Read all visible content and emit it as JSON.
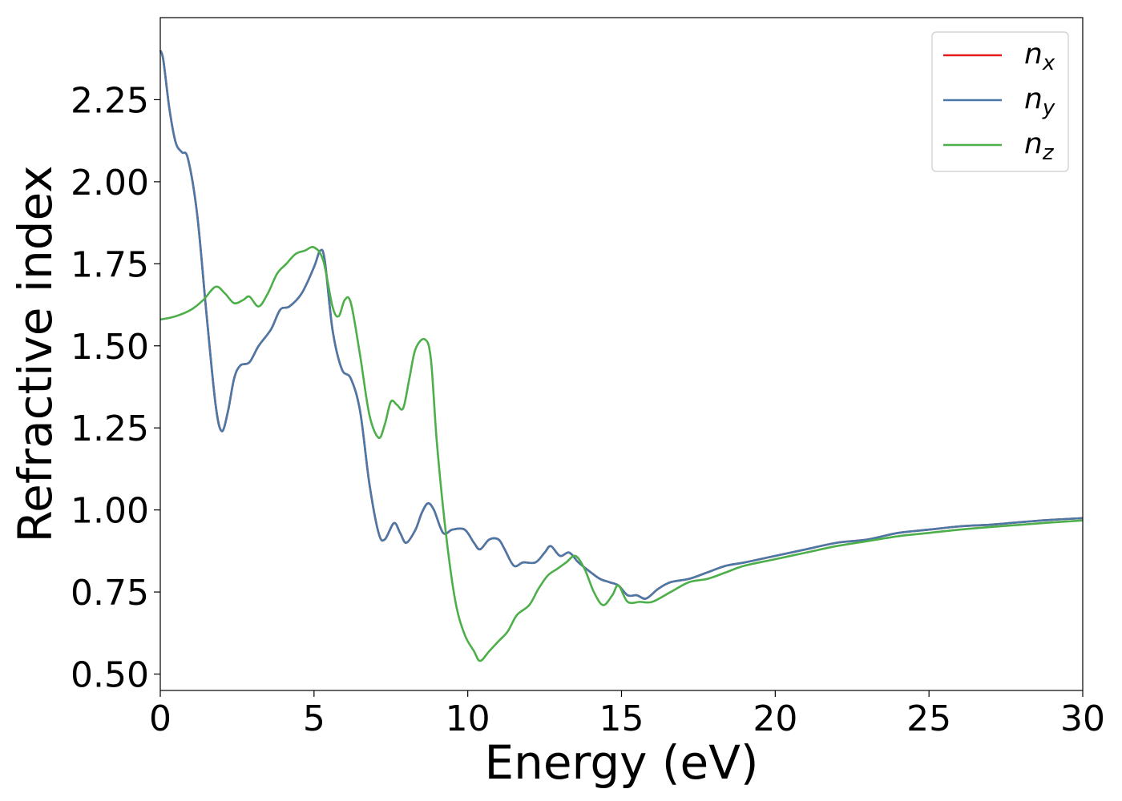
{
  "chart_data": {
    "type": "line",
    "xlabel": "Energy (eV)",
    "ylabel": "Refractive index",
    "xlim": [
      0,
      30
    ],
    "ylim": [
      0.45,
      2.5
    ],
    "xticks": [
      "0",
      "5",
      "10",
      "15",
      "20",
      "25",
      "30"
    ],
    "xtick_values": [
      0,
      5,
      10,
      15,
      20,
      25,
      30
    ],
    "yticks": [
      "0.50",
      "0.75",
      "1.00",
      "1.25",
      "1.50",
      "1.75",
      "2.00",
      "2.25"
    ],
    "ytick_values": [
      0.5,
      0.75,
      1.0,
      1.25,
      1.5,
      1.75,
      2.0,
      2.25
    ],
    "grid": false,
    "legend_position": "top-right",
    "series": [
      {
        "name": "n_x",
        "legend_base": "n",
        "legend_sub": "x",
        "color": "#e41a1c",
        "points": [
          [
            0,
            2.4
          ],
          [
            0.1,
            2.37
          ],
          [
            0.3,
            2.22
          ],
          [
            0.5,
            2.12
          ],
          [
            0.7,
            2.09
          ],
          [
            0.9,
            2.07
          ],
          [
            1.2,
            1.9
          ],
          [
            1.5,
            1.6
          ],
          [
            1.8,
            1.32
          ],
          [
            2.0,
            1.24
          ],
          [
            2.2,
            1.3
          ],
          [
            2.4,
            1.4
          ],
          [
            2.6,
            1.44
          ],
          [
            2.9,
            1.45
          ],
          [
            3.2,
            1.5
          ],
          [
            3.6,
            1.55
          ],
          [
            3.9,
            1.61
          ],
          [
            4.2,
            1.62
          ],
          [
            4.6,
            1.66
          ],
          [
            5.0,
            1.74
          ],
          [
            5.2,
            1.79
          ],
          [
            5.35,
            1.76
          ],
          [
            5.6,
            1.55
          ],
          [
            5.9,
            1.43
          ],
          [
            6.2,
            1.4
          ],
          [
            6.5,
            1.3
          ],
          [
            6.8,
            1.08
          ],
          [
            7.1,
            0.93
          ],
          [
            7.3,
            0.91
          ],
          [
            7.6,
            0.96
          ],
          [
            7.8,
            0.93
          ],
          [
            8.0,
            0.9
          ],
          [
            8.3,
            0.94
          ],
          [
            8.5,
            0.99
          ],
          [
            8.7,
            1.02
          ],
          [
            8.9,
            1.0
          ],
          [
            9.2,
            0.93
          ],
          [
            9.5,
            0.94
          ],
          [
            9.9,
            0.94
          ],
          [
            10.2,
            0.9
          ],
          [
            10.4,
            0.88
          ],
          [
            10.7,
            0.91
          ],
          [
            11.0,
            0.91
          ],
          [
            11.2,
            0.88
          ],
          [
            11.5,
            0.83
          ],
          [
            11.8,
            0.84
          ],
          [
            12.2,
            0.84
          ],
          [
            12.5,
            0.87
          ],
          [
            12.7,
            0.89
          ],
          [
            13.0,
            0.86
          ],
          [
            13.3,
            0.87
          ],
          [
            13.6,
            0.84
          ],
          [
            14.0,
            0.81
          ],
          [
            14.3,
            0.79
          ],
          [
            14.6,
            0.78
          ],
          [
            14.9,
            0.77
          ],
          [
            15.2,
            0.74
          ],
          [
            15.5,
            0.74
          ],
          [
            15.8,
            0.73
          ],
          [
            16.2,
            0.76
          ],
          [
            16.6,
            0.78
          ],
          [
            17.2,
            0.79
          ],
          [
            17.8,
            0.81
          ],
          [
            18.4,
            0.83
          ],
          [
            19.0,
            0.84
          ],
          [
            20.0,
            0.86
          ],
          [
            21.0,
            0.88
          ],
          [
            22.0,
            0.9
          ],
          [
            23.0,
            0.91
          ],
          [
            24.0,
            0.93
          ],
          [
            25.0,
            0.94
          ],
          [
            26.0,
            0.95
          ],
          [
            27.0,
            0.955
          ],
          [
            28.0,
            0.963
          ],
          [
            29.0,
            0.97
          ],
          [
            30.0,
            0.975
          ]
        ]
      },
      {
        "name": "n_y",
        "legend_base": "n",
        "legend_sub": "y",
        "color": "#4a79a8",
        "points": [
          [
            0,
            2.4
          ],
          [
            0.1,
            2.37
          ],
          [
            0.3,
            2.22
          ],
          [
            0.5,
            2.12
          ],
          [
            0.7,
            2.09
          ],
          [
            0.9,
            2.07
          ],
          [
            1.2,
            1.9
          ],
          [
            1.5,
            1.6
          ],
          [
            1.8,
            1.32
          ],
          [
            2.0,
            1.24
          ],
          [
            2.2,
            1.3
          ],
          [
            2.4,
            1.4
          ],
          [
            2.6,
            1.44
          ],
          [
            2.9,
            1.45
          ],
          [
            3.2,
            1.5
          ],
          [
            3.6,
            1.55
          ],
          [
            3.9,
            1.61
          ],
          [
            4.2,
            1.62
          ],
          [
            4.6,
            1.66
          ],
          [
            5.0,
            1.74
          ],
          [
            5.2,
            1.79
          ],
          [
            5.35,
            1.76
          ],
          [
            5.6,
            1.55
          ],
          [
            5.9,
            1.43
          ],
          [
            6.2,
            1.4
          ],
          [
            6.5,
            1.3
          ],
          [
            6.8,
            1.08
          ],
          [
            7.1,
            0.93
          ],
          [
            7.3,
            0.91
          ],
          [
            7.6,
            0.96
          ],
          [
            7.8,
            0.93
          ],
          [
            8.0,
            0.9
          ],
          [
            8.3,
            0.94
          ],
          [
            8.5,
            0.99
          ],
          [
            8.7,
            1.02
          ],
          [
            8.9,
            1.0
          ],
          [
            9.2,
            0.93
          ],
          [
            9.5,
            0.94
          ],
          [
            9.9,
            0.94
          ],
          [
            10.2,
            0.9
          ],
          [
            10.4,
            0.88
          ],
          [
            10.7,
            0.91
          ],
          [
            11.0,
            0.91
          ],
          [
            11.2,
            0.88
          ],
          [
            11.5,
            0.83
          ],
          [
            11.8,
            0.84
          ],
          [
            12.2,
            0.84
          ],
          [
            12.5,
            0.87
          ],
          [
            12.7,
            0.89
          ],
          [
            13.0,
            0.86
          ],
          [
            13.3,
            0.87
          ],
          [
            13.6,
            0.84
          ],
          [
            14.0,
            0.81
          ],
          [
            14.3,
            0.79
          ],
          [
            14.6,
            0.78
          ],
          [
            14.9,
            0.77
          ],
          [
            15.2,
            0.74
          ],
          [
            15.5,
            0.74
          ],
          [
            15.8,
            0.73
          ],
          [
            16.2,
            0.76
          ],
          [
            16.6,
            0.78
          ],
          [
            17.2,
            0.79
          ],
          [
            17.8,
            0.81
          ],
          [
            18.4,
            0.83
          ],
          [
            19.0,
            0.84
          ],
          [
            20.0,
            0.86
          ],
          [
            21.0,
            0.88
          ],
          [
            22.0,
            0.9
          ],
          [
            23.0,
            0.91
          ],
          [
            24.0,
            0.93
          ],
          [
            25.0,
            0.94
          ],
          [
            26.0,
            0.95
          ],
          [
            27.0,
            0.955
          ],
          [
            28.0,
            0.963
          ],
          [
            29.0,
            0.97
          ],
          [
            30.0,
            0.975
          ]
        ]
      },
      {
        "name": "n_z",
        "legend_base": "n",
        "legend_sub": "z",
        "color": "#4daf4a",
        "points": [
          [
            0,
            1.58
          ],
          [
            0.5,
            1.59
          ],
          [
            1.0,
            1.61
          ],
          [
            1.4,
            1.64
          ],
          [
            1.8,
            1.68
          ],
          [
            2.1,
            1.66
          ],
          [
            2.4,
            1.63
          ],
          [
            2.7,
            1.64
          ],
          [
            2.9,
            1.65
          ],
          [
            3.2,
            1.62
          ],
          [
            3.5,
            1.66
          ],
          [
            3.8,
            1.72
          ],
          [
            4.1,
            1.75
          ],
          [
            4.4,
            1.78
          ],
          [
            4.7,
            1.79
          ],
          [
            5.0,
            1.8
          ],
          [
            5.3,
            1.76
          ],
          [
            5.6,
            1.62
          ],
          [
            5.8,
            1.59
          ],
          [
            6.0,
            1.64
          ],
          [
            6.2,
            1.63
          ],
          [
            6.5,
            1.47
          ],
          [
            6.8,
            1.29
          ],
          [
            7.1,
            1.22
          ],
          [
            7.3,
            1.26
          ],
          [
            7.5,
            1.33
          ],
          [
            7.7,
            1.32
          ],
          [
            7.9,
            1.31
          ],
          [
            8.1,
            1.4
          ],
          [
            8.3,
            1.49
          ],
          [
            8.6,
            1.52
          ],
          [
            8.8,
            1.46
          ],
          [
            9.0,
            1.2
          ],
          [
            9.3,
            0.92
          ],
          [
            9.6,
            0.72
          ],
          [
            9.9,
            0.62
          ],
          [
            10.2,
            0.57
          ],
          [
            10.4,
            0.54
          ],
          [
            10.7,
            0.57
          ],
          [
            11.0,
            0.6
          ],
          [
            11.3,
            0.63
          ],
          [
            11.6,
            0.68
          ],
          [
            12.0,
            0.71
          ],
          [
            12.3,
            0.76
          ],
          [
            12.6,
            0.8
          ],
          [
            12.9,
            0.82
          ],
          [
            13.2,
            0.84
          ],
          [
            13.5,
            0.86
          ],
          [
            13.8,
            0.82
          ],
          [
            14.1,
            0.75
          ],
          [
            14.4,
            0.71
          ],
          [
            14.7,
            0.74
          ],
          [
            14.9,
            0.77
          ],
          [
            15.2,
            0.72
          ],
          [
            15.6,
            0.72
          ],
          [
            16.0,
            0.72
          ],
          [
            16.6,
            0.75
          ],
          [
            17.2,
            0.78
          ],
          [
            17.8,
            0.79
          ],
          [
            18.4,
            0.81
          ],
          [
            19.0,
            0.83
          ],
          [
            20.0,
            0.85
          ],
          [
            21.0,
            0.87
          ],
          [
            22.0,
            0.89
          ],
          [
            23.0,
            0.905
          ],
          [
            24.0,
            0.92
          ],
          [
            25.0,
            0.93
          ],
          [
            26.0,
            0.94
          ],
          [
            27.0,
            0.948
          ],
          [
            28.0,
            0.955
          ],
          [
            29.0,
            0.962
          ],
          [
            30.0,
            0.968
          ]
        ]
      }
    ]
  }
}
